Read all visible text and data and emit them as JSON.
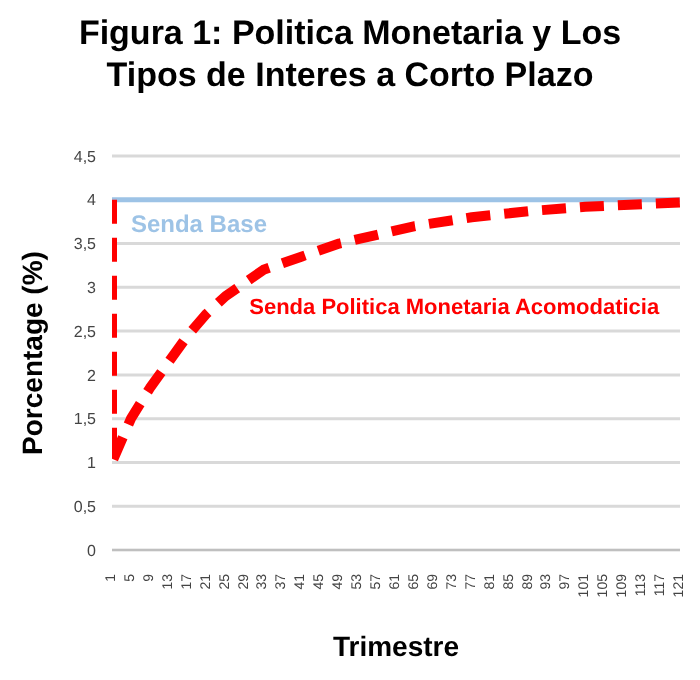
{
  "chart_data": {
    "type": "line",
    "title": "Figura 1: Politica Monetaria y Los Tipos de Interes a Corto Plazo",
    "xlabel": "Trimestre",
    "ylabel": "Porcentage (%)",
    "xlim": [
      1,
      121
    ],
    "xticks": [
      1,
      5,
      9,
      13,
      17,
      21,
      25,
      29,
      33,
      37,
      41,
      45,
      49,
      53,
      57,
      61,
      65,
      69,
      73,
      77,
      81,
      85,
      89,
      93,
      97,
      101,
      105,
      109,
      113,
      117,
      121
    ],
    "ylim": [
      0,
      4.5
    ],
    "yticks": [
      {
        "value": 0,
        "label": "0"
      },
      {
        "value": 0.5,
        "label": "0,5"
      },
      {
        "value": 1,
        "label": "1"
      },
      {
        "value": 1.5,
        "label": "1,5"
      },
      {
        "value": 2,
        "label": "2"
      },
      {
        "value": 2.5,
        "label": "2,5"
      },
      {
        "value": 3,
        "label": "3"
      },
      {
        "value": 3.5,
        "label": "3,5"
      },
      {
        "value": 4,
        "label": "4"
      },
      {
        "value": 4.5,
        "label": "4,5"
      }
    ],
    "grid": "y",
    "legend": false,
    "marker": "none",
    "series": [
      {
        "name": "Senda Base",
        "color": "#9dc3e6",
        "line_style": "solid",
        "x": [
          1,
          121
        ],
        "values": [
          4,
          4
        ]
      },
      {
        "name": "Senda Politica Monetaria Acomodaticia",
        "color": "#ff0000",
        "line_style": "dashed",
        "x": [
          1,
          1,
          5,
          9,
          13,
          17,
          21,
          25,
          29,
          33,
          41,
          49,
          57,
          65,
          77,
          89,
          101,
          113,
          121
        ],
        "values": [
          4,
          1,
          1.5,
          1.85,
          2.15,
          2.45,
          2.7,
          2.9,
          3.05,
          3.2,
          3.35,
          3.5,
          3.6,
          3.7,
          3.8,
          3.87,
          3.92,
          3.95,
          3.97
        ]
      }
    ]
  }
}
